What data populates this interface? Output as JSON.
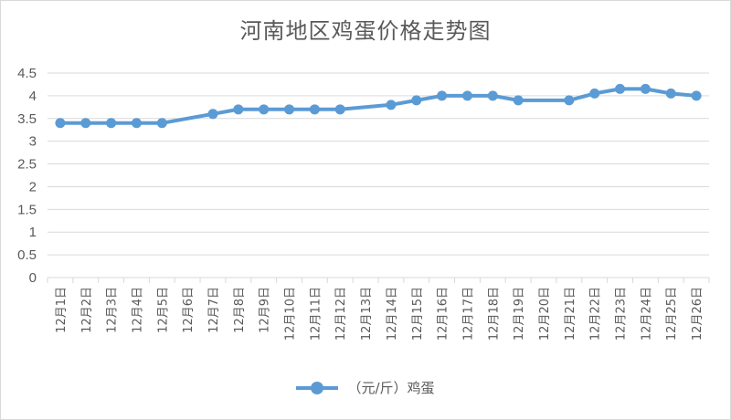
{
  "chart_data": {
    "type": "line",
    "title": "河南地区鸡蛋价格走势图",
    "xlabel": "",
    "ylabel": "",
    "ylim": [
      0,
      4.5
    ],
    "yticks": [
      "0",
      "0.5",
      "1",
      "1.5",
      "2",
      "2.5",
      "3",
      "3.5",
      "4",
      "4.5"
    ],
    "categories": [
      "12月1日",
      "12月2日",
      "12月3日",
      "12月4日",
      "12月5日",
      "12月6日",
      "12月7日",
      "12月8日",
      "12月9日",
      "12月10日",
      "12月11日",
      "12月12日",
      "12月13日",
      "12月14日",
      "12月15日",
      "12月16日",
      "12月17日",
      "12月18日",
      "12月19日",
      "12月20日",
      "12月21日",
      "12月22日",
      "12月23日",
      "12月24日",
      "12月25日",
      "12月26日"
    ],
    "series": [
      {
        "name": "（元/斤）鸡蛋",
        "color": "#5b9bd5",
        "values": [
          3.4,
          3.4,
          3.4,
          3.4,
          3.4,
          null,
          3.6,
          3.7,
          3.7,
          3.7,
          3.7,
          3.7,
          null,
          3.8,
          3.9,
          4.0,
          4.0,
          4.0,
          3.9,
          null,
          3.9,
          4.05,
          4.15,
          4.15,
          4.05,
          4.0
        ]
      }
    ],
    "grid": true,
    "legend": "bottom"
  }
}
